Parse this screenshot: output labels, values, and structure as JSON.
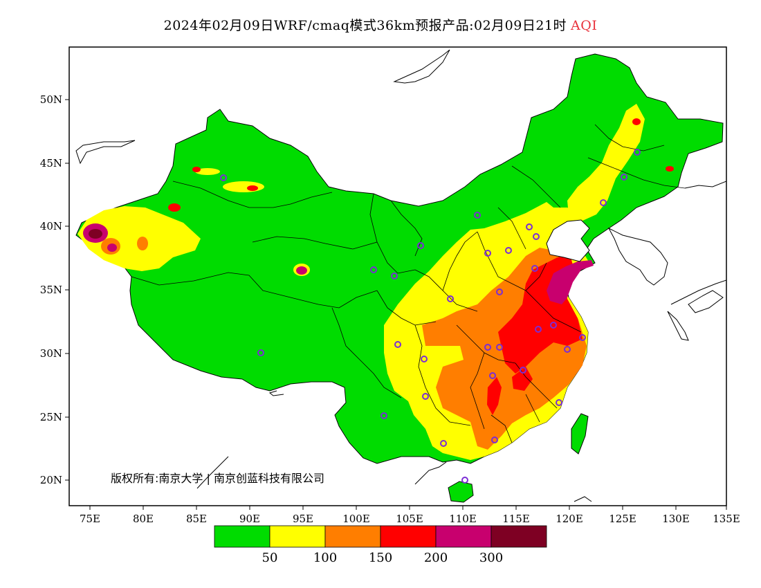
{
  "title": {
    "main": "2024年02月09日WRF/cmaq模式36km预报产品:02月09日21时",
    "variable": "AQI"
  },
  "axes": {
    "lat_labels": [
      "50N",
      "45N",
      "40N",
      "35N",
      "30N",
      "25N",
      "20N"
    ],
    "lon_labels": [
      "75E",
      "80E",
      "85E",
      "90E",
      "95E",
      "100E",
      "105E",
      "110E",
      "115E",
      "120E",
      "125E",
      "130E",
      "135E"
    ]
  },
  "colorbar": {
    "colors": [
      "#00dc00",
      "#ffff00",
      "#ff7e00",
      "#ff0000",
      "#c8006e",
      "#7e0023"
    ],
    "labels": [
      "50",
      "100",
      "150",
      "200",
      "300"
    ]
  },
  "copyright": "版权所有:南京大学 | 南京创蓝科技有限公司",
  "colors": {
    "good": "#00dc00",
    "moderate": "#ffff00",
    "sensitive": "#ff7e00",
    "unhealthy": "#ff0000",
    "very_unhealthy": "#c8006e",
    "hazardous": "#7e0023",
    "marker": "#7b2cd6"
  }
}
